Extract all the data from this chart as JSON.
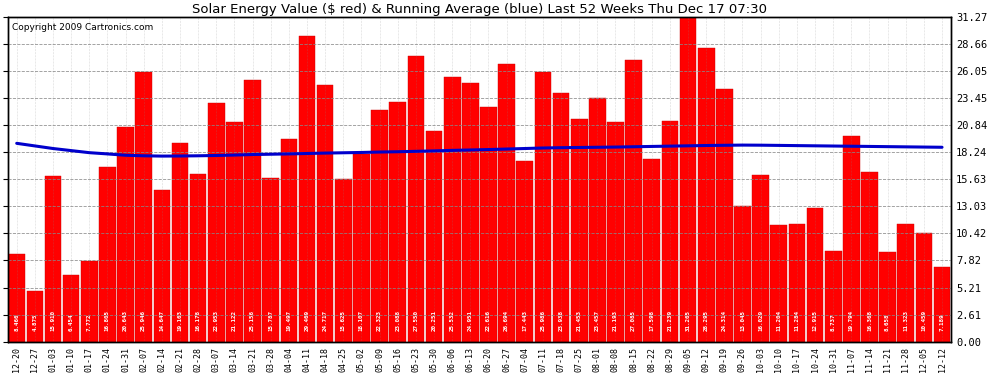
{
  "title": "Solar Energy Value ($ red) & Running Average (blue) Last 52 Weeks Thu Dec 17 07:30",
  "copyright": "Copyright 2009 Cartronics.com",
  "bar_color": "#FF0000",
  "line_color": "#0000CC",
  "background_color": "#FFFFFF",
  "plot_bg_color": "#FFFFFF",
  "grid_color": "#AAAAAA",
  "ylim": [
    0,
    31.27
  ],
  "yticks_right": [
    0.0,
    2.61,
    5.21,
    7.82,
    10.42,
    13.03,
    15.63,
    18.24,
    20.84,
    23.45,
    26.05,
    28.66,
    31.27
  ],
  "categories": [
    "12-20",
    "12-27",
    "01-03",
    "01-10",
    "01-17",
    "01-24",
    "01-31",
    "02-07",
    "02-14",
    "02-21",
    "02-28",
    "03-07",
    "03-14",
    "03-21",
    "03-28",
    "04-04",
    "04-11",
    "04-18",
    "04-25",
    "05-02",
    "05-09",
    "05-16",
    "05-23",
    "05-30",
    "06-06",
    "06-13",
    "06-20",
    "06-27",
    "07-04",
    "07-11",
    "07-18",
    "07-25",
    "08-01",
    "08-08",
    "08-15",
    "08-22",
    "08-29",
    "09-05",
    "09-12",
    "09-19",
    "09-26",
    "10-03",
    "10-10",
    "10-17",
    "10-24",
    "10-31",
    "11-07",
    "11-14",
    "11-21",
    "11-28",
    "12-05",
    "12-12"
  ],
  "values": [
    8.466,
    4.875,
    15.91,
    6.454,
    7.772,
    16.805,
    20.643,
    25.946,
    14.647,
    19.163,
    16.178,
    22.953,
    21.122,
    25.156,
    15.787,
    19.497,
    29.469,
    24.717,
    15.625,
    18.107,
    22.323,
    23.088,
    27.55,
    20.251,
    25.532,
    24.951,
    22.616,
    26.694,
    17.443,
    25.986,
    23.938,
    21.453,
    23.457,
    21.193,
    27.085,
    17.598,
    21.239,
    31.265,
    28.295,
    24.314,
    13.045,
    16.029,
    11.204,
    11.284,
    12.915,
    8.737,
    19.794,
    16.368,
    8.658,
    11.323,
    10.459,
    7.189
  ],
  "running_avg": [
    19.1,
    18.85,
    18.6,
    18.4,
    18.2,
    18.08,
    17.95,
    17.9,
    17.87,
    17.88,
    17.9,
    17.93,
    17.97,
    18.02,
    18.05,
    18.08,
    18.12,
    18.16,
    18.19,
    18.22,
    18.26,
    18.29,
    18.33,
    18.37,
    18.42,
    18.46,
    18.5,
    18.55,
    18.6,
    18.65,
    18.68,
    18.7,
    18.72,
    18.74,
    18.77,
    18.8,
    18.83,
    18.86,
    18.89,
    18.91,
    18.93,
    18.92,
    18.9,
    18.88,
    18.86,
    18.84,
    18.82,
    18.8,
    18.78,
    18.76,
    18.74,
    18.72
  ]
}
